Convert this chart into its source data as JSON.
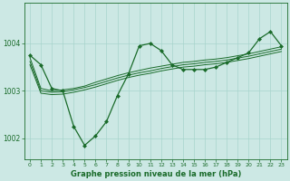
{
  "bg_color": "#cce8e4",
  "line_color": "#1a6b2a",
  "grid_color": "#a8d4cc",
  "xlabel": "Graphe pression niveau de la mer (hPa)",
  "xlim": [
    -0.5,
    23.5
  ],
  "ylim": [
    1001.55,
    1004.85
  ],
  "yticks": [
    1002,
    1003,
    1004
  ],
  "xticks": [
    0,
    1,
    2,
    3,
    4,
    5,
    6,
    7,
    8,
    9,
    10,
    11,
    12,
    13,
    14,
    15,
    16,
    17,
    18,
    19,
    20,
    21,
    22,
    23
  ],
  "line1_x": [
    0,
    1,
    2,
    3,
    4,
    5,
    6,
    7,
    8,
    9,
    10,
    11,
    12,
    13,
    14,
    15,
    16,
    17,
    18,
    19,
    20,
    21,
    22,
    23
  ],
  "line1_y": [
    1003.75,
    1003.55,
    1003.05,
    1003.0,
    1002.25,
    1001.85,
    1002.05,
    1002.35,
    1002.9,
    1003.35,
    1003.95,
    1004.0,
    1003.85,
    1003.55,
    1003.45,
    1003.45,
    1003.45,
    1003.5,
    1003.6,
    1003.7,
    1003.8,
    1004.1,
    1004.25,
    1003.95
  ],
  "line2_x": [
    0,
    1,
    2,
    3,
    4,
    5,
    6,
    7,
    8,
    9,
    10,
    11,
    12,
    13,
    14,
    15,
    16,
    17,
    18,
    19,
    20,
    21,
    22,
    23
  ],
  "line2_y": [
    1003.7,
    1003.05,
    1003.0,
    1003.02,
    1003.05,
    1003.1,
    1003.18,
    1003.25,
    1003.32,
    1003.38,
    1003.43,
    1003.48,
    1003.52,
    1003.56,
    1003.6,
    1003.62,
    1003.65,
    1003.67,
    1003.7,
    1003.74,
    1003.78,
    1003.83,
    1003.88,
    1003.93
  ],
  "line3_x": [
    0,
    1,
    2,
    3,
    4,
    5,
    6,
    7,
    8,
    9,
    10,
    11,
    12,
    13,
    14,
    15,
    16,
    17,
    18,
    19,
    20,
    21,
    22,
    23
  ],
  "line3_y": [
    1003.62,
    1003.0,
    1002.97,
    1002.98,
    1003.02,
    1003.07,
    1003.13,
    1003.2,
    1003.27,
    1003.33,
    1003.38,
    1003.42,
    1003.47,
    1003.51,
    1003.55,
    1003.57,
    1003.6,
    1003.62,
    1003.65,
    1003.69,
    1003.73,
    1003.78,
    1003.83,
    1003.88
  ],
  "line4_x": [
    0,
    1,
    2,
    3,
    4,
    5,
    6,
    7,
    8,
    9,
    10,
    11,
    12,
    13,
    14,
    15,
    16,
    17,
    18,
    19,
    20,
    21,
    22,
    23
  ],
  "line4_y": [
    1003.55,
    1002.95,
    1002.92,
    1002.93,
    1002.97,
    1003.02,
    1003.08,
    1003.15,
    1003.22,
    1003.28,
    1003.33,
    1003.37,
    1003.42,
    1003.46,
    1003.5,
    1003.52,
    1003.55,
    1003.57,
    1003.6,
    1003.64,
    1003.68,
    1003.73,
    1003.78,
    1003.83
  ]
}
